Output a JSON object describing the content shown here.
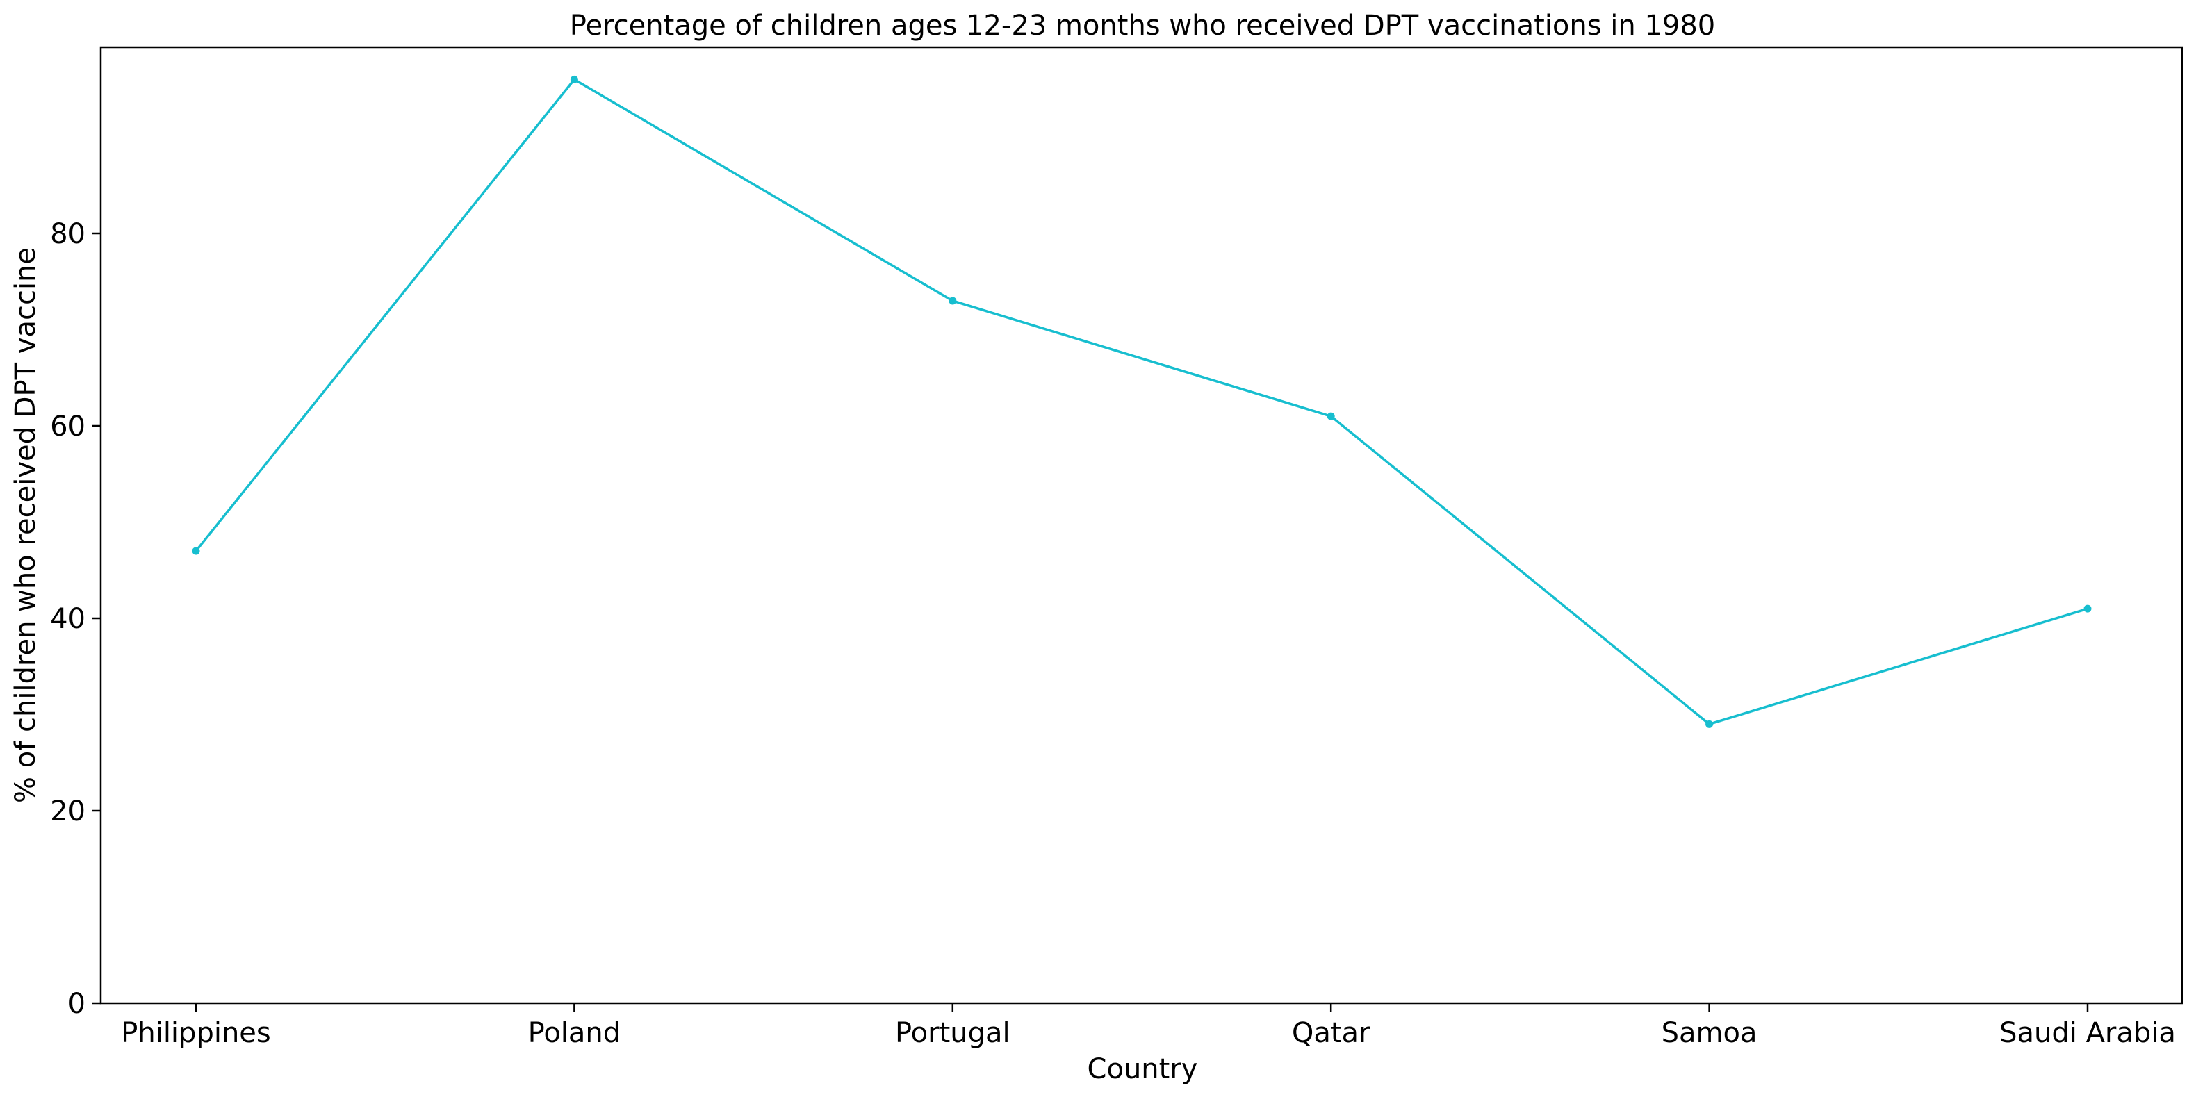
{
  "chart_data": {
    "type": "line",
    "title": "Percentage of children ages 12-23 months who received DPT vaccinations in 1980",
    "xlabel": "Country",
    "ylabel": "% of children who received DPT vaccine",
    "categories": [
      "Philippines",
      "Poland",
      "Portugal",
      "Qatar",
      "Samoa",
      "Saudi Arabia"
    ],
    "series": [
      {
        "values": [
          47,
          96,
          73,
          61,
          29,
          41
        ],
        "color": "#17BECF"
      }
    ],
    "ylim": [
      0,
      99.35
    ],
    "yticks": [
      0,
      20,
      40,
      60,
      80
    ],
    "ytick_labels": [
      "0",
      "20",
      "40",
      "60",
      "80"
    ],
    "grid": false,
    "legend": "none",
    "marker": "dot"
  }
}
